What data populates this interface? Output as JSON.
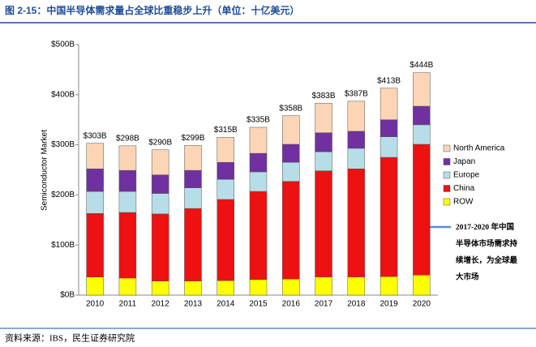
{
  "title": "图 2-15：中国半导体需求量占全球比重稳步上升（单位：十亿美元）",
  "source": "资料来源：IBS，民生证券研究院",
  "chart_data": {
    "type": "stacked_bar",
    "ylabel": "Semiconductor Market",
    "categories": [
      "2010",
      "2011",
      "2012",
      "2013",
      "2014",
      "2015",
      "2016",
      "2017",
      "2018",
      "2019",
      "2020"
    ],
    "series": [
      {
        "name": "ROW",
        "color": "#ffff00",
        "values": [
          36,
          34,
          28,
          28,
          29,
          31,
          32,
          36,
          36,
          37,
          40
        ]
      },
      {
        "name": "China",
        "color": "#ee1111",
        "values": [
          127,
          131,
          134,
          145,
          162,
          176,
          195,
          212,
          216,
          238,
          261
        ]
      },
      {
        "name": "Europe",
        "color": "#b7dee8",
        "values": [
          44,
          42,
          41,
          41,
          40,
          39,
          38,
          38,
          41,
          41,
          39
        ]
      },
      {
        "name": "Japan",
        "color": "#7030a0",
        "values": [
          45,
          42,
          37,
          35,
          34,
          37,
          36,
          38,
          34,
          34,
          37
        ]
      },
      {
        "name": "North America",
        "color": "#fbd5b5",
        "values": [
          51,
          49,
          50,
          50,
          50,
          52,
          57,
          59,
          60,
          63,
          67
        ]
      }
    ],
    "totals": {
      "values": [
        303,
        298,
        290,
        299,
        315,
        335,
        358,
        383,
        387,
        413,
        444
      ],
      "value_labels": [
        "$303B",
        "$298B",
        "$290B",
        "$299B",
        "$315B",
        "$335B",
        "$358B",
        "$383B",
        "$387B",
        "$413B",
        "$444B"
      ]
    },
    "ylim": [
      0,
      500
    ],
    "yticks": [
      {
        "value": 0,
        "label": "$0B"
      },
      {
        "value": 100,
        "label": "$100B"
      },
      {
        "value": 200,
        "label": "$200B"
      },
      {
        "value": 300,
        "label": "$300B"
      },
      {
        "value": 400,
        "label": "$400B"
      },
      {
        "value": 500,
        "label": "$500B"
      }
    ],
    "grid": false,
    "legend": "right",
    "annotation": [
      "2017-2020 年中国",
      "半导体市场需求持",
      "续增长，为全球最",
      "大市场"
    ]
  }
}
